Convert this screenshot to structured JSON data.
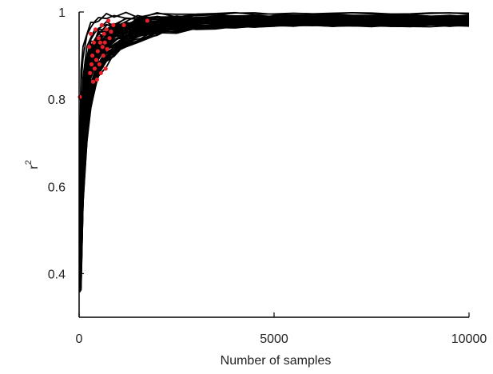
{
  "chart_data": {
    "type": "line",
    "xlabel": "Number of samples",
    "ylabel": "r",
    "ylabel_superscript": "2",
    "xlim": [
      0,
      10000
    ],
    "ylim": [
      0.3,
      1.0
    ],
    "xticks": [
      0,
      5000,
      10000
    ],
    "xtick_labels": [
      "0",
      "5000",
      "10000"
    ],
    "yticks": [
      0.4,
      0.6,
      0.8,
      1.0
    ],
    "ytick_labels": [
      "0.4",
      "0.6",
      "0.8",
      "1"
    ],
    "grid": false,
    "legend": "none",
    "line_color": "#000000",
    "point_color": "#e8202a",
    "num_curves": 60,
    "curve_x": [
      50,
      100,
      200,
      300,
      400,
      500,
      700,
      900,
      1200,
      1500,
      2000,
      2500,
      3000,
      3500,
      4000,
      4500,
      5000,
      5500,
      6000,
      6500,
      7000,
      7500,
      8000,
      8500,
      9000,
      9500,
      10000
    ],
    "curve_envelope_upper": [
      0.88,
      0.93,
      0.965,
      0.98,
      0.985,
      0.99,
      0.993,
      0.995,
      0.996,
      0.997,
      0.997,
      0.998,
      0.998,
      0.998,
      0.998,
      0.998,
      0.998,
      0.998,
      0.998,
      0.998,
      0.998,
      0.998,
      0.998,
      0.998,
      0.998,
      0.998,
      0.998
    ],
    "curve_envelope_lower": [
      0.35,
      0.55,
      0.7,
      0.78,
      0.82,
      0.85,
      0.88,
      0.9,
      0.92,
      0.935,
      0.95,
      0.955,
      0.96,
      0.962,
      0.965,
      0.966,
      0.967,
      0.968,
      0.968,
      0.968,
      0.968,
      0.968,
      0.968,
      0.968,
      0.968,
      0.968,
      0.968
    ],
    "points": [
      {
        "x": 20,
        "y": 0.805
      },
      {
        "x": 260,
        "y": 0.92
      },
      {
        "x": 280,
        "y": 0.86
      },
      {
        "x": 300,
        "y": 0.95
      },
      {
        "x": 320,
        "y": 0.88
      },
      {
        "x": 340,
        "y": 0.9
      },
      {
        "x": 360,
        "y": 0.84
      },
      {
        "x": 380,
        "y": 0.93
      },
      {
        "x": 400,
        "y": 0.87
      },
      {
        "x": 420,
        "y": 0.96
      },
      {
        "x": 440,
        "y": 0.89
      },
      {
        "x": 460,
        "y": 0.845
      },
      {
        "x": 480,
        "y": 0.91
      },
      {
        "x": 500,
        "y": 0.94
      },
      {
        "x": 520,
        "y": 0.88
      },
      {
        "x": 540,
        "y": 0.93
      },
      {
        "x": 560,
        "y": 0.86
      },
      {
        "x": 580,
        "y": 0.97
      },
      {
        "x": 600,
        "y": 0.92
      },
      {
        "x": 620,
        "y": 0.9
      },
      {
        "x": 640,
        "y": 0.95
      },
      {
        "x": 660,
        "y": 0.93
      },
      {
        "x": 680,
        "y": 0.87
      },
      {
        "x": 700,
        "y": 0.96
      },
      {
        "x": 720,
        "y": 0.915
      },
      {
        "x": 750,
        "y": 0.98
      },
      {
        "x": 780,
        "y": 0.94
      },
      {
        "x": 820,
        "y": 0.955
      },
      {
        "x": 880,
        "y": 0.97
      },
      {
        "x": 1150,
        "y": 0.97
      },
      {
        "x": 1750,
        "y": 0.98
      }
    ]
  }
}
